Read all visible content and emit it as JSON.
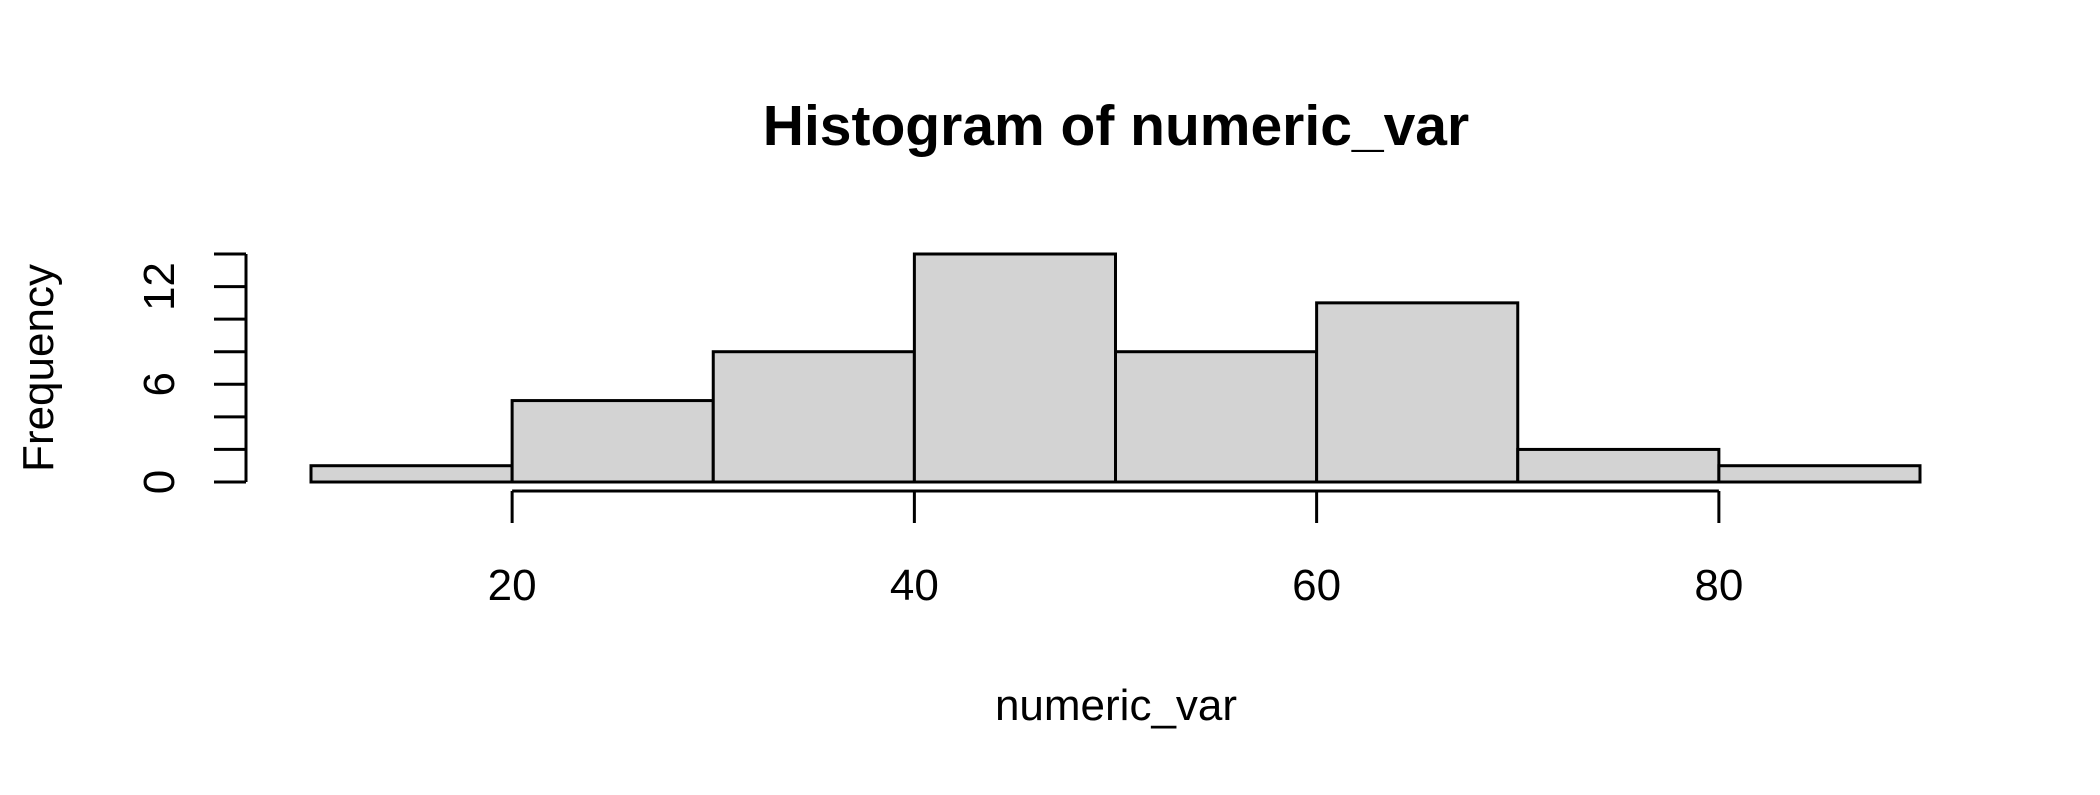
{
  "chart_data": {
    "type": "bar",
    "title": "Histogram of numeric_var",
    "xlabel": "numeric_var",
    "ylabel": "Frequency",
    "bins": [
      {
        "start": 10,
        "end": 20,
        "count": 1
      },
      {
        "start": 20,
        "end": 30,
        "count": 5
      },
      {
        "start": 30,
        "end": 40,
        "count": 8
      },
      {
        "start": 40,
        "end": 50,
        "count": 14
      },
      {
        "start": 50,
        "end": 60,
        "count": 8
      },
      {
        "start": 60,
        "end": 70,
        "count": 11
      },
      {
        "start": 70,
        "end": 80,
        "count": 2
      },
      {
        "start": 80,
        "end": 90,
        "count": 1
      }
    ],
    "xticks": [
      20,
      40,
      60,
      80
    ],
    "yticks": [
      0,
      6,
      12
    ],
    "xlim": [
      10,
      90
    ],
    "ylim": [
      0,
      14
    ],
    "grid": false,
    "colors": {
      "bar_fill": "#d3d3d3",
      "bar_stroke": "#000000",
      "axis": "#000000",
      "background": "#ffffff"
    }
  }
}
